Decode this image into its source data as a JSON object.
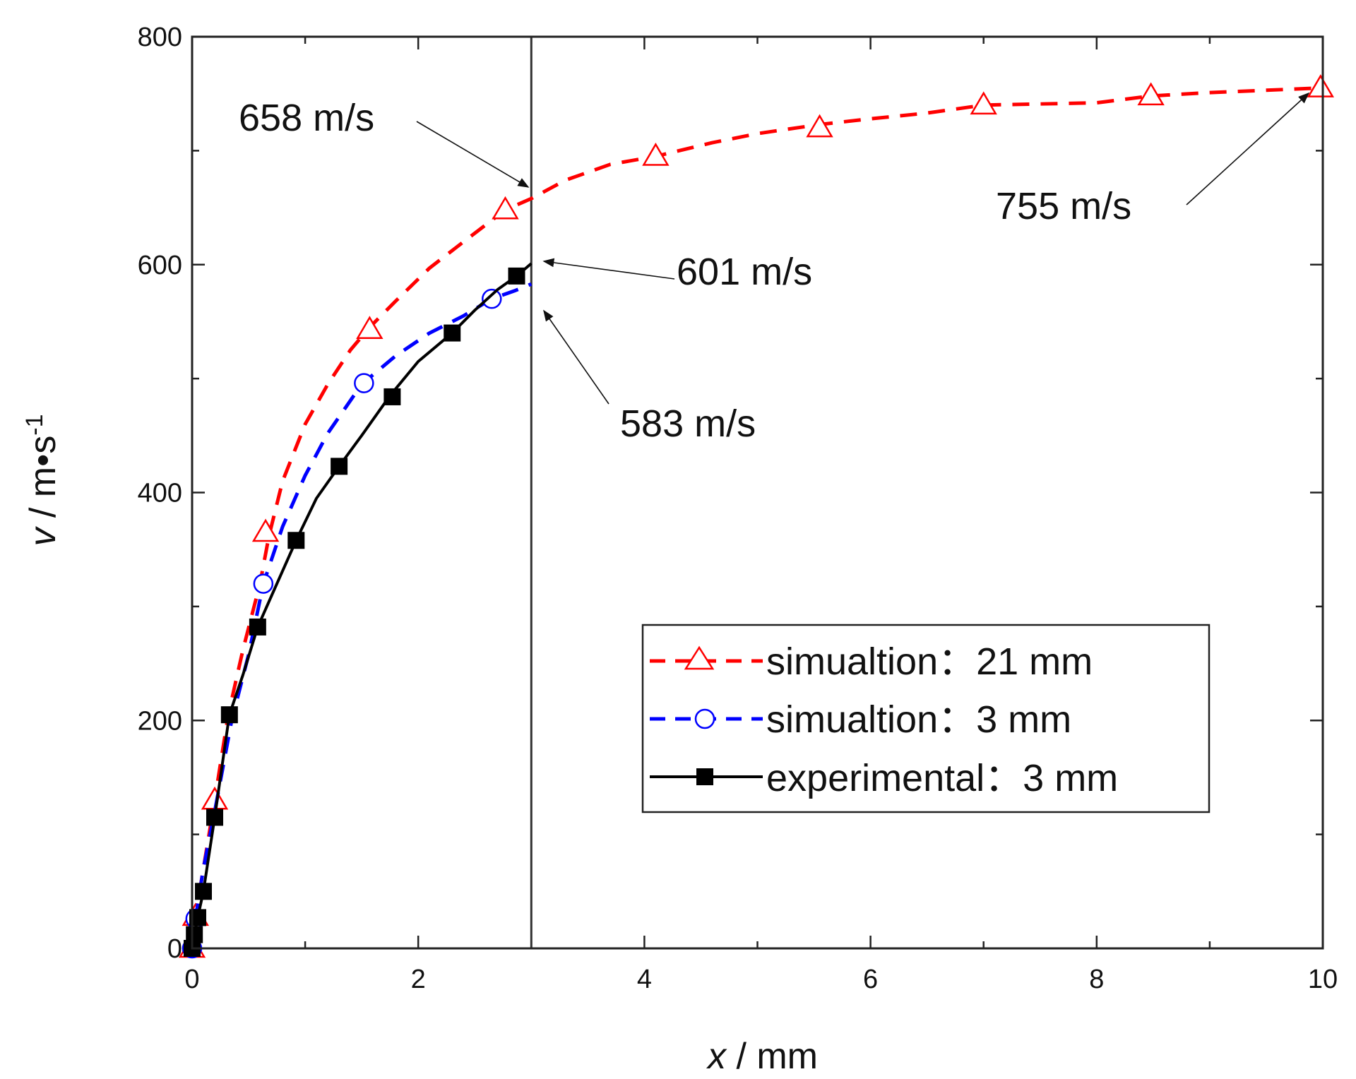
{
  "chart_data": {
    "type": "line",
    "title": "",
    "xlabel": {
      "var": "x",
      "rest": " / mm"
    },
    "ylabel": {
      "var": "v",
      "rest": "  / m•s",
      "sup": "-1"
    },
    "xlim": [
      0,
      10
    ],
    "ylim": [
      0,
      800
    ],
    "xticks": [
      0,
      2,
      4,
      6,
      8,
      10
    ],
    "yticks": [
      0,
      200,
      400,
      600,
      800
    ],
    "xtick_labels": [
      "0",
      "2",
      "4",
      "6",
      "8",
      "10"
    ],
    "ytick_labels": [
      "0",
      "200",
      "400",
      "600",
      "800"
    ],
    "grid": false,
    "vline_x": 3,
    "legend_position": "lower-right",
    "series": [
      {
        "name": "simualtion：21 mm",
        "color": "#ff0000",
        "line": "dashed",
        "marker": "triangle-open",
        "x": [
          0,
          0.03,
          0.1,
          0.2,
          0.32,
          0.45,
          0.6,
          0.68,
          0.8,
          1.0,
          1.2,
          1.4,
          1.57,
          1.8,
          2.1,
          2.4,
          2.77,
          3.0,
          3.3,
          3.7,
          4.1,
          4.6,
          5.0,
          5.55,
          6.0,
          6.5,
          7.0,
          7.5,
          8.0,
          8.48,
          9.0,
          9.5,
          9.98
        ],
        "y": [
          0,
          28,
          70,
          130,
          205,
          262,
          320,
          362,
          410,
          460,
          495,
          525,
          545,
          568,
          597,
          620,
          648,
          658,
          674,
          688,
          695,
          707,
          715,
          723,
          728,
          733,
          740,
          741,
          742,
          748,
          751,
          753,
          755
        ],
        "marker_x": [
          0,
          0.03,
          0.2,
          0.65,
          1.57,
          2.77,
          4.1,
          5.55,
          7.0,
          8.48,
          9.98
        ],
        "marker_y": [
          0,
          28,
          130,
          365,
          543,
          648,
          695,
          720,
          740,
          748,
          755
        ]
      },
      {
        "name": "simualtion：3 mm",
        "color": "#0000ff",
        "line": "dashed",
        "marker": "circle-open",
        "x": [
          0,
          0.03,
          0.1,
          0.2,
          0.35,
          0.5,
          0.63,
          0.8,
          1.0,
          1.2,
          1.5,
          1.8,
          2.1,
          2.4,
          2.65,
          2.85,
          3.0
        ],
        "y": [
          0,
          26,
          70,
          120,
          200,
          258,
          320,
          370,
          415,
          452,
          495,
          520,
          540,
          555,
          570,
          577,
          583
        ],
        "marker_x": [
          0,
          0.03,
          0.63,
          1.52,
          2.65
        ],
        "marker_y": [
          0,
          26,
          320,
          496,
          570
        ]
      },
      {
        "name": "experimental：3 mm",
        "color": "#000000",
        "line": "solid",
        "marker": "square-filled",
        "x": [
          0,
          0.02,
          0.05,
          0.1,
          0.2,
          0.33,
          0.45,
          0.58,
          0.75,
          0.92,
          1.1,
          1.3,
          1.5,
          1.75,
          2.0,
          2.3,
          2.5,
          2.7,
          2.87,
          3.0
        ],
        "y": [
          0,
          12,
          27,
          50,
          115,
          205,
          240,
          282,
          320,
          358,
          395,
          423,
          450,
          485,
          515,
          540,
          560,
          578,
          590,
          601
        ],
        "marker_x": [
          0,
          0.02,
          0.05,
          0.1,
          0.2,
          0.33,
          0.58,
          0.92,
          1.3,
          1.77,
          2.3,
          2.87
        ],
        "marker_y": [
          0,
          12,
          27,
          50,
          115,
          205,
          282,
          358,
          423,
          484,
          540,
          590
        ]
      }
    ],
    "annotations": [
      {
        "text": "658 m/s",
        "x": 3.0,
        "y": 658
      },
      {
        "text": "755 m/s",
        "x": 9.98,
        "y": 755
      },
      {
        "text": "601 m/s",
        "x": 3.0,
        "y": 601
      },
      {
        "text": "583 m/s",
        "x": 3.0,
        "y": 583
      }
    ]
  }
}
